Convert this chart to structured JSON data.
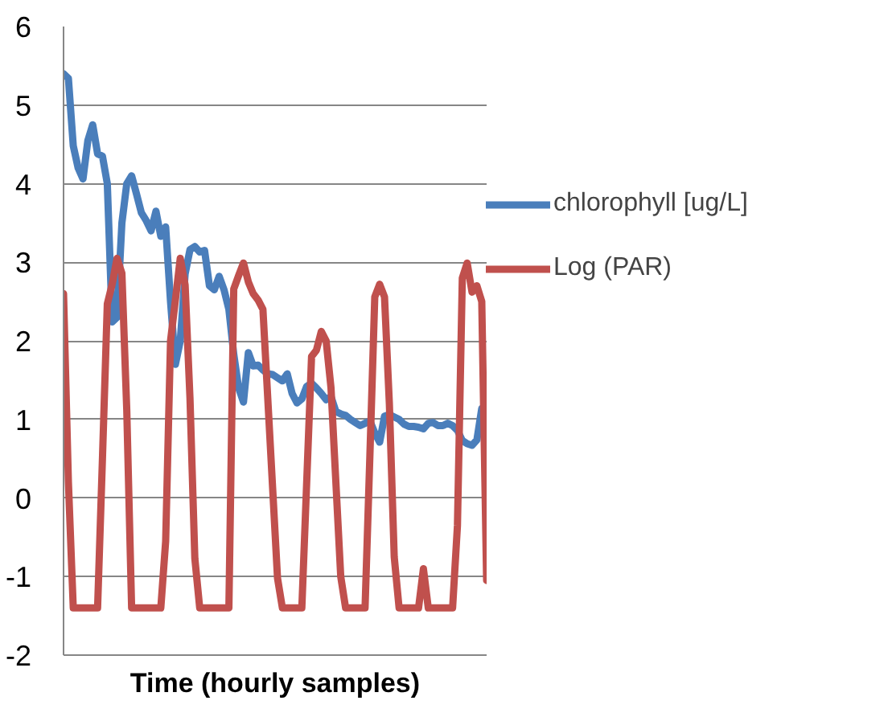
{
  "chart_data": {
    "type": "line",
    "xlabel": "Time (hourly samples)",
    "categories": [
      null,
      null,
      null,
      null,
      null,
      null,
      null,
      null,
      null,
      null,
      null,
      null,
      null,
      null,
      null,
      null,
      null,
      null,
      null,
      null,
      null,
      null,
      null,
      null,
      null,
      null,
      null,
      null,
      null,
      null,
      null,
      null,
      null,
      null,
      null,
      null,
      null,
      null,
      null,
      null,
      null,
      null,
      null,
      null,
      null,
      null,
      null,
      null,
      null,
      null,
      null,
      null,
      null,
      null,
      null,
      null,
      null,
      null,
      null,
      null,
      null,
      null,
      null,
      null,
      null,
      null,
      null,
      null,
      null,
      null,
      null,
      null,
      null,
      null,
      null,
      null,
      null,
      null,
      null,
      null,
      null,
      null,
      null,
      null,
      null,
      null,
      null,
      null
    ],
    "series": [
      {
        "name": "chlorophyll [ug/L]",
        "color": "#4a7ebb",
        "values": [
          5.4,
          5.34,
          4.48,
          4.2,
          4.06,
          4.55,
          4.75,
          4.38,
          4.35,
          4.0,
          2.24,
          2.3,
          3.5,
          4.0,
          4.1,
          3.87,
          3.63,
          3.53,
          3.4,
          3.65,
          3.33,
          3.45,
          2.5,
          1.7,
          2.0,
          2.85,
          3.16,
          3.2,
          3.13,
          3.15,
          2.7,
          2.65,
          2.82,
          2.65,
          2.4,
          1.83,
          1.4,
          1.22,
          1.85,
          1.68,
          1.69,
          1.63,
          1.58,
          1.57,
          1.53,
          1.49,
          1.58,
          1.33,
          1.21,
          1.26,
          1.42,
          1.46,
          1.4,
          1.33,
          1.25,
          1.29,
          1.1,
          1.07,
          1.05,
          1.0,
          0.96,
          0.92,
          0.95,
          0.98,
          0.83,
          0.71,
          1.04,
          1.06,
          1.03,
          1.0,
          0.94,
          0.91,
          0.91,
          0.9,
          0.88,
          0.95,
          0.96,
          0.92,
          0.92,
          0.95,
          0.92,
          0.86,
          0.73,
          0.69,
          0.67,
          0.74,
          1.14,
          1.06
        ]
      },
      {
        "name": "Log (PAR)",
        "color": "#c0504d",
        "values": [
          2.6,
          0.2,
          -1.4,
          -1.4,
          -1.4,
          -1.4,
          -1.4,
          -1.4,
          0.5,
          2.47,
          2.72,
          3.05,
          2.86,
          1.12,
          -1.4,
          -1.4,
          -1.4,
          -1.4,
          -1.4,
          -1.4,
          -1.4,
          -0.55,
          2.0,
          2.52,
          3.05,
          2.71,
          1.27,
          -0.77,
          -1.4,
          -1.4,
          -1.4,
          -1.4,
          -1.4,
          -1.4,
          -1.4,
          2.66,
          2.83,
          2.99,
          2.75,
          2.6,
          2.52,
          2.4,
          1.26,
          0.12,
          -1.02,
          -1.4,
          -1.4,
          -1.4,
          -1.4,
          -1.4,
          0.2,
          1.8,
          1.88,
          2.12,
          2.0,
          1.4,
          0.2,
          -1.0,
          -1.4,
          -1.4,
          -1.4,
          -1.4,
          -1.4,
          0.55,
          2.56,
          2.72,
          2.56,
          1.2,
          -0.75,
          -1.4,
          -1.4,
          -1.4,
          -1.4,
          -1.4,
          -0.9,
          -1.4,
          -1.4,
          -1.4,
          -1.4,
          -1.4,
          -1.4,
          -0.35,
          2.8,
          2.99,
          2.62,
          2.7,
          2.5,
          -1.05
        ]
      }
    ],
    "ylim": [
      -2,
      6
    ],
    "yticks": [
      -2,
      -1,
      0,
      1,
      2,
      3,
      4,
      5,
      6
    ],
    "grid": "y",
    "legend": "right",
    "tick_labels": "y"
  }
}
